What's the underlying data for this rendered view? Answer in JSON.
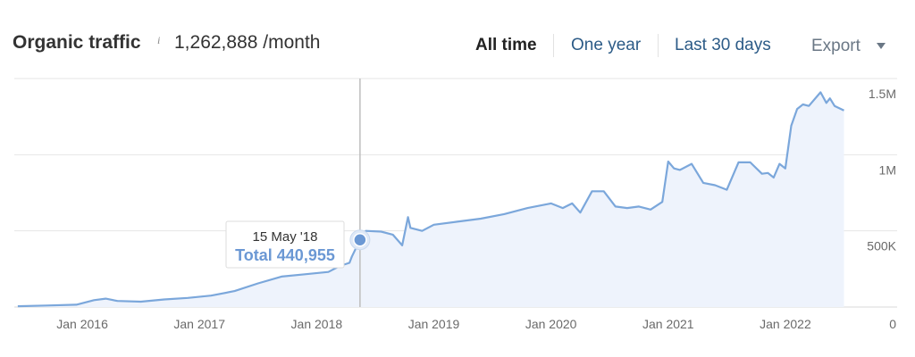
{
  "header": {
    "title": "Organic traffic",
    "info_icon": "i",
    "metric_value": "1,262,888 /month",
    "ranges": [
      "All time",
      "One year",
      "Last 30 days"
    ],
    "export_label": "Export"
  },
  "colors": {
    "line": "#7ba7db",
    "area": "#eef3fc",
    "marker": "#6b98d4",
    "grid": "#e6e6e6",
    "active_range": "#222222",
    "link": "#2c5b87"
  },
  "chart_data": {
    "type": "area",
    "title": "Organic traffic",
    "x_ticks": [
      "Jan 2016",
      "Jan 2017",
      "Jan 2018",
      "Jan 2019",
      "Jan 2020",
      "Jan 2021",
      "Jan 2022"
    ],
    "y_ticks": [
      "1.5M",
      "1M",
      "500K",
      "0"
    ],
    "xlim": [
      2015.42,
      2022.58
    ],
    "ylim": [
      0,
      1500000
    ],
    "grid": true,
    "series": [
      {
        "x": [
          2015.45,
          2015.7,
          2015.95,
          2016.1,
          2016.2,
          2016.3,
          2016.5,
          2016.7,
          2016.9,
          2017.1,
          2017.3,
          2017.5,
          2017.7,
          2017.9,
          2018.1,
          2018.2,
          2018.28,
          2018.3,
          2018.37,
          2018.42,
          2018.55,
          2018.65,
          2018.73,
          2018.78,
          2018.8,
          2018.9,
          2019.0,
          2019.2,
          2019.4,
          2019.6,
          2019.8,
          2020.0,
          2020.1,
          2020.18,
          2020.25,
          2020.35,
          2020.45,
          2020.55,
          2020.65,
          2020.75,
          2020.85,
          2020.95,
          2021.0,
          2021.05,
          2021.1,
          2021.2,
          2021.3,
          2021.4,
          2021.5,
          2021.6,
          2021.7,
          2021.8,
          2021.85,
          2021.9,
          2021.95,
          2022.0,
          2022.05,
          2022.1,
          2022.15,
          2022.2,
          2022.3,
          2022.35,
          2022.38,
          2022.42,
          2022.5
        ],
        "y": [
          5000,
          10000,
          15000,
          45000,
          55000,
          40000,
          35000,
          50000,
          60000,
          75000,
          105000,
          155000,
          200000,
          215000,
          230000,
          270000,
          290000,
          330000,
          440955,
          500000,
          495000,
          475000,
          405000,
          590000,
          520000,
          500000,
          540000,
          560000,
          580000,
          610000,
          650000,
          680000,
          650000,
          680000,
          620000,
          760000,
          760000,
          660000,
          650000,
          660000,
          640000,
          690000,
          955000,
          910000,
          900000,
          940000,
          815000,
          800000,
          770000,
          950000,
          950000,
          875000,
          880000,
          850000,
          940000,
          910000,
          1190000,
          1300000,
          1330000,
          1320000,
          1410000,
          1340000,
          1370000,
          1320000,
          1290000
        ]
      }
    ],
    "highlight": {
      "date": "15 May '18",
      "label": "Total 440,955",
      "x": 2018.37,
      "y": 440955
    }
  }
}
